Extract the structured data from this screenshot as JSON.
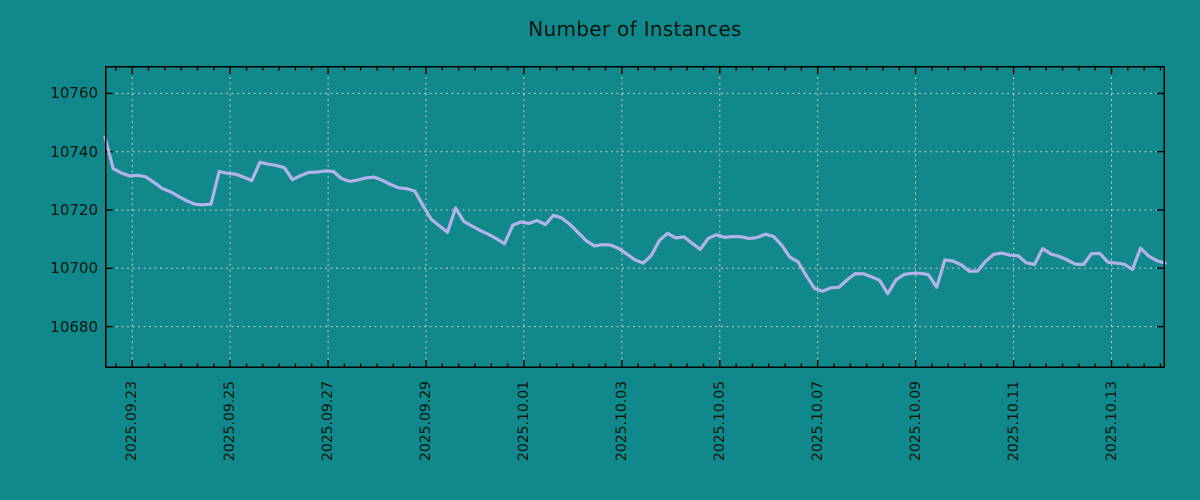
{
  "title": "Number of Instances",
  "colors": {
    "background": "#118889",
    "line": "#b3b3ea",
    "grid": "#c9c9c9",
    "axis": "#000000",
    "text": "#001414"
  },
  "chart_data": {
    "type": "line",
    "title": "Number of Instances",
    "xlabel": "",
    "ylabel": "",
    "legend": "none",
    "grid": "dashed",
    "x_tick_labels": [
      "2025.09.23",
      "2025.09.25",
      "2025.09.27",
      "2025.09.29",
      "2025.10.01",
      "2025.10.03",
      "2025.10.05",
      "2025.10.07",
      "2025.10.09",
      "2025.10.11",
      "2025.10.13"
    ],
    "x_range_estimate": [
      "2025.09.22 ~12:00",
      "2025.10.14 ~02:00"
    ],
    "points_interval_hours": 4,
    "y_ticks": [
      10760,
      10740,
      10720,
      10700,
      10680
    ],
    "ylim": [
      10665.8,
      10769.4
    ],
    "x_first_tick_frac": 0.02566,
    "x_tick_spacing_frac": 0.092387,
    "x_minor_divisions": 6,
    "values": [
      10745.0,
      10734.2,
      10732.7,
      10731.7,
      10731.9,
      10731.4,
      10729.5,
      10727.4,
      10726.3,
      10724.7,
      10723.2,
      10722.0,
      10721.8,
      10722.0,
      10733.2,
      10732.6,
      10732.3,
      10731.3,
      10730.1,
      10736.4,
      10735.7,
      10735.3,
      10734.5,
      10730.4,
      10731.8,
      10732.9,
      10733.0,
      10733.4,
      10733.2,
      10730.8,
      10729.8,
      10730.3,
      10731.0,
      10731.3,
      10730.2,
      10728.8,
      10727.6,
      10727.3,
      10726.5,
      10721.5,
      10716.8,
      10714.6,
      10712.4,
      10720.7,
      10716.1,
      10714.5,
      10713.0,
      10711.7,
      10710.2,
      10708.4,
      10714.8,
      10715.9,
      10715.4,
      10716.4,
      10715.0,
      10718.2,
      10717.3,
      10715.1,
      10712.3,
      10709.5,
      10707.7,
      10708.1,
      10708.0,
      10706.8,
      10704.9,
      10702.9,
      10701.8,
      10704.4,
      10709.6,
      10712.0,
      10710.4,
      10710.8,
      10708.6,
      10706.5,
      10710.3,
      10711.5,
      10710.6,
      10710.9,
      10710.8,
      10710.2,
      10710.6,
      10711.7,
      10710.9,
      10707.9,
      10703.8,
      10702.2,
      10697.5,
      10693.1,
      10692.1,
      10693.3,
      10693.5,
      10696.0,
      10698.2,
      10698.1,
      10697.1,
      10695.9,
      10691.3,
      10696.0,
      10697.9,
      10698.3,
      10698.3,
      10697.8,
      10693.5,
      10702.9,
      10702.5,
      10701.2,
      10699.0,
      10699.0,
      10702.4,
      10704.8,
      10705.2,
      10704.5,
      10704.3,
      10701.9,
      10701.3,
      10706.8,
      10704.9,
      10704.1,
      10702.9,
      10701.4,
      10701.3,
      10705.0,
      10705.1,
      10702.1,
      10701.8,
      10701.4,
      10699.6,
      10706.9,
      10704.2,
      10702.6,
      10701.8
    ]
  }
}
